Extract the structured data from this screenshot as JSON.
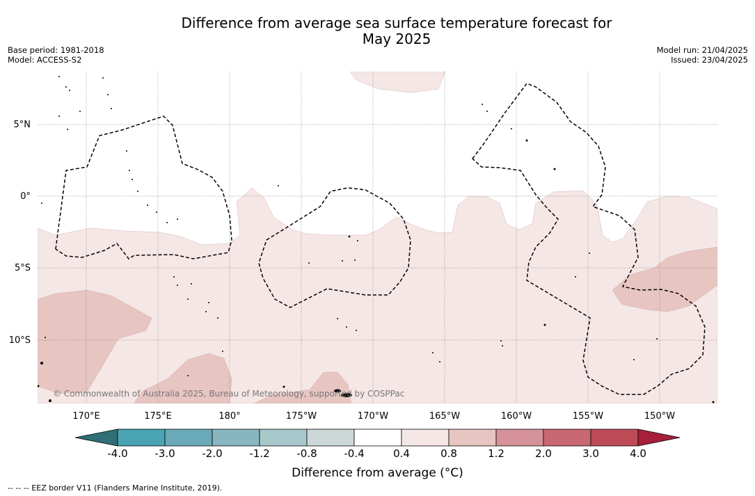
{
  "title": {
    "line1": "Difference from average sea surface temperature forecast for",
    "line2": "May 2025"
  },
  "meta_left": {
    "base_period": "Base period: 1981-2018",
    "model": "Model: ACCESS-S2"
  },
  "meta_right": {
    "model_run": "Model run: 21/04/2025",
    "issued": "Issued: 23/04/2025"
  },
  "map": {
    "lat_labels": [
      "5°N",
      "0°",
      "5°S",
      "10°S"
    ],
    "lon_labels": [
      "170°E",
      "175°E",
      "180°",
      "175°W",
      "170°W",
      "165°W",
      "160°W",
      "155°W",
      "150°W"
    ],
    "copyright": "© Commonwealth of Australia 2025, Bureau of Meteorology, supported by COSPPac",
    "colors": {
      "anomaly_04_08": "#f5e7e6",
      "anomaly_08_12": "#e7c5c1",
      "eez_border": "#000000",
      "gridline": "#888888"
    }
  },
  "colorbar": {
    "ticks": [
      "-4.0",
      "-3.0",
      "-2.0",
      "-1.2",
      "-0.8",
      "-0.4",
      "0.4",
      "0.8",
      "1.2",
      "2.0",
      "3.0",
      "4.0"
    ],
    "colors": [
      "#2f6f76",
      "#4aa3b3",
      "#6aaab8",
      "#88b6c0",
      "#a8c9cc",
      "#ccd8d8",
      "#ffffff",
      "#f5e7e6",
      "#e7c5c1",
      "#d6929a",
      "#c86871",
      "#be4a58",
      "#a6203a"
    ],
    "title": "Difference from average (°C)"
  },
  "legend_note": "--  --  -- EEZ border V11 (Flanders Marine Institute, 2019)."
}
